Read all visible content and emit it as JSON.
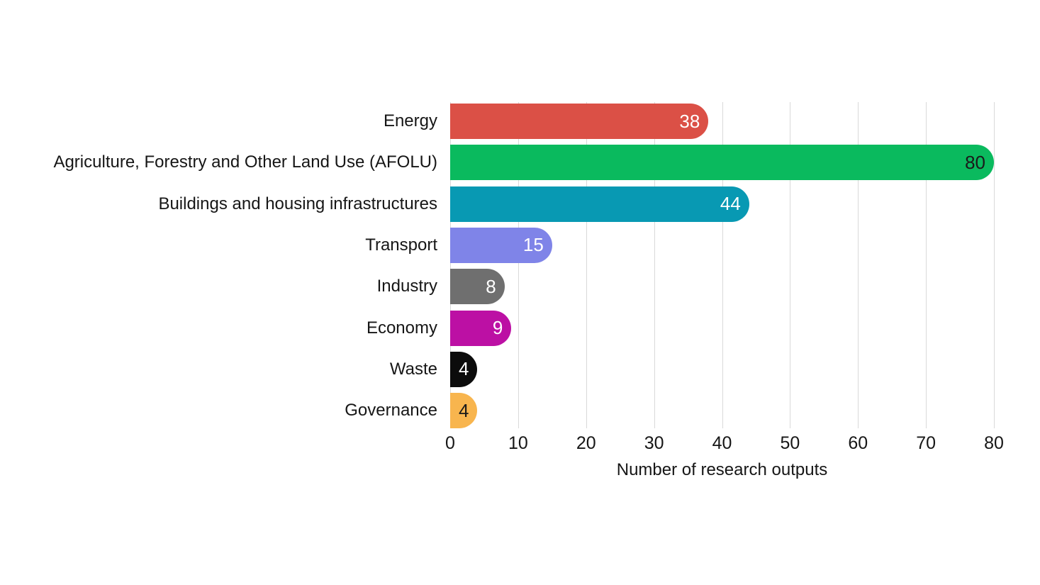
{
  "chart_data": {
    "type": "bar",
    "orientation": "horizontal",
    "title": "",
    "xlabel": "Number of research outputs",
    "ylabel": "",
    "xlim": [
      0,
      80
    ],
    "x_ticks": [
      0,
      10,
      20,
      30,
      40,
      50,
      60,
      70,
      80
    ],
    "grid": "vertical-only",
    "legend": "none",
    "categories": [
      "Energy",
      "Agriculture, Forestry and Other Land Use (AFOLU)",
      "Buildings and housing infrastructures",
      "Transport",
      "Industry",
      "Economy",
      "Waste",
      "Governance"
    ],
    "values": [
      38,
      80,
      44,
      15,
      8,
      9,
      4,
      4
    ],
    "bar_colors": [
      "#db5046",
      "#0aba5e",
      "#0899b3",
      "#7f84e8",
      "#6f6f6f",
      "#bc10a4",
      "#0c0c0c",
      "#f8b54e"
    ],
    "value_label_colors": [
      "#ffffff",
      "#1a1a1a",
      "#ffffff",
      "#ffffff",
      "#ffffff",
      "#ffffff",
      "#ffffff",
      "#1a1a1a"
    ],
    "colors": {
      "background": "#ffffff",
      "grid": "#d9d9d9",
      "text": "#161616"
    }
  }
}
